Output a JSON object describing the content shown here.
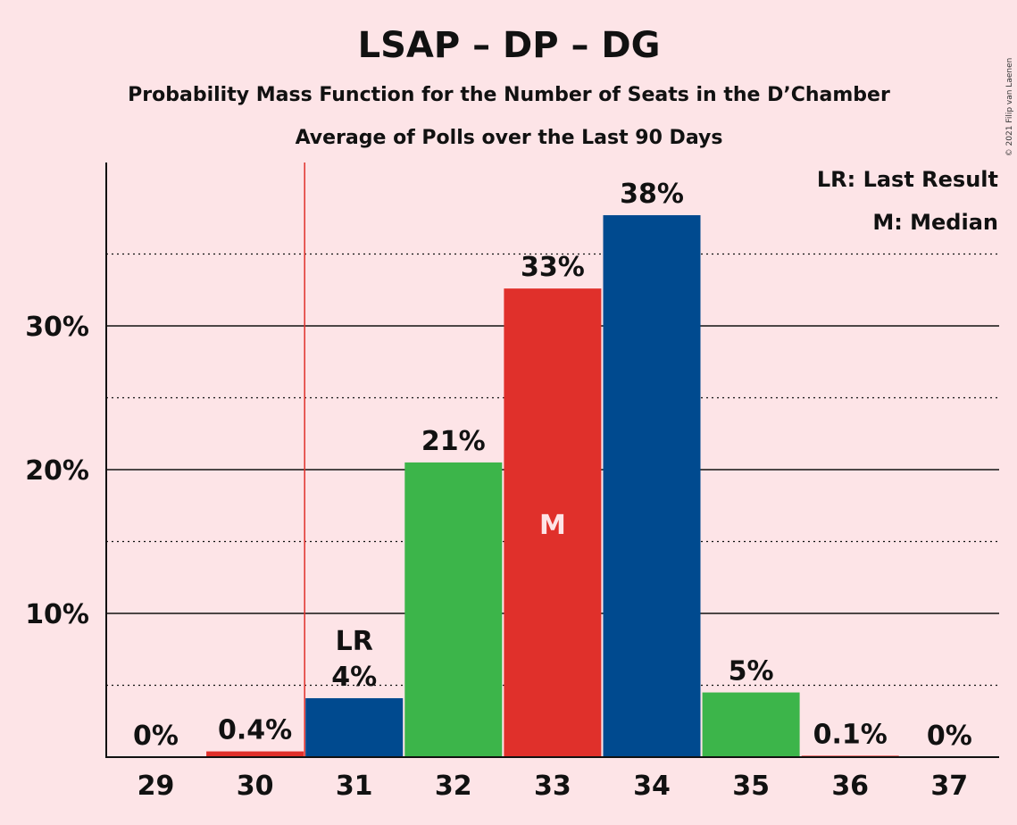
{
  "title": "LSAP – DP – DG",
  "subtitle": "Probability Mass Function for the Number of Seats in the D’Chamber",
  "subtitle2": "Average of Polls over the Last 90 Days",
  "legend": {
    "last_result": "LR: Last Result",
    "median": "M: Median"
  },
  "copyright": "© 2021 Filip van Laenen",
  "colors": {
    "background": "#fde4e7",
    "red": "#e0302b",
    "green": "#3cb54a",
    "blue": "#004a8f"
  },
  "chart_data": {
    "type": "bar",
    "categories": [
      "29",
      "30",
      "31",
      "32",
      "33",
      "34",
      "35",
      "36",
      "37"
    ],
    "values": [
      0,
      0.4,
      4.1,
      20.5,
      32.6,
      37.7,
      4.5,
      0.1,
      0
    ],
    "labels": [
      "0%",
      "0.4%",
      "4%",
      "21%",
      "33%",
      "38%",
      "5%",
      "0.1%",
      "0%"
    ],
    "bar_colors": [
      "red",
      "red",
      "blue",
      "green",
      "red",
      "blue",
      "green",
      "red",
      "blue"
    ],
    "y_ticks": [
      {
        "value": 10,
        "label": "10%"
      },
      {
        "value": 20,
        "label": "20%"
      },
      {
        "value": 30,
        "label": "30%"
      }
    ],
    "y_minor_ticks": [
      5,
      15,
      25,
      35
    ],
    "ylim": [
      0,
      41.4
    ],
    "last_result": {
      "category": "31",
      "marker": "LR"
    },
    "median": {
      "category": "33",
      "marker": "M"
    },
    "legend_position": "top-right",
    "grid": true
  }
}
